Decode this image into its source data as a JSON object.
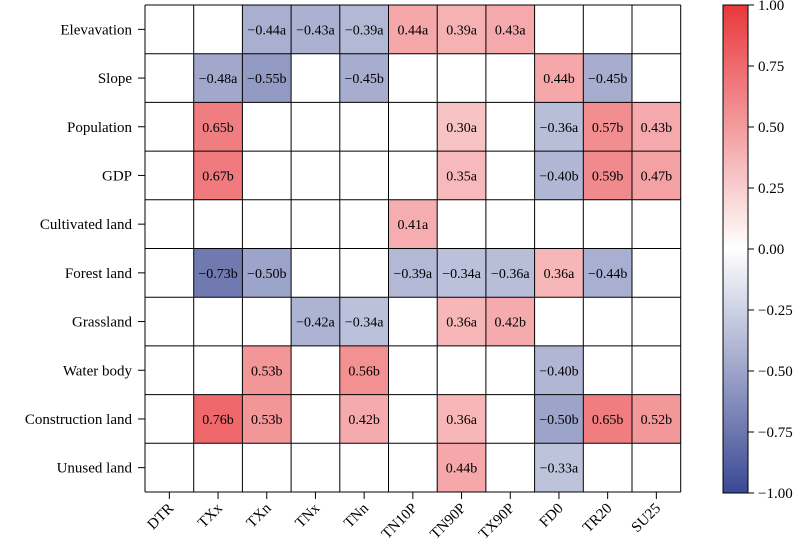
{
  "chart_data": {
    "type": "heatmap",
    "rows": [
      "Elevavation",
      "Slope",
      "Population",
      "GDP",
      "Cultivated land",
      "Forest land",
      "Grassland",
      "Water body",
      "Construction land",
      "Unused land"
    ],
    "columns": [
      "DTR",
      "TXx",
      "TXn",
      "TNx",
      "TNn",
      "TN10P",
      "TN90P",
      "TX90P",
      "FD0",
      "TR20",
      "SU25"
    ],
    "values": [
      [
        null,
        null,
        -0.44,
        -0.43,
        -0.39,
        0.44,
        0.39,
        0.43,
        null,
        null,
        null
      ],
      [
        null,
        -0.48,
        -0.55,
        null,
        -0.45,
        null,
        null,
        null,
        0.44,
        -0.45,
        null
      ],
      [
        null,
        0.65,
        null,
        null,
        null,
        null,
        0.3,
        null,
        -0.36,
        0.57,
        0.43
      ],
      [
        null,
        0.67,
        null,
        null,
        null,
        null,
        0.35,
        null,
        -0.4,
        0.59,
        0.47
      ],
      [
        null,
        null,
        null,
        null,
        null,
        0.41,
        null,
        null,
        null,
        null,
        null
      ],
      [
        null,
        -0.73,
        -0.5,
        null,
        null,
        -0.39,
        -0.34,
        -0.36,
        0.36,
        -0.44,
        null
      ],
      [
        null,
        null,
        null,
        -0.42,
        -0.34,
        null,
        0.36,
        0.42,
        null,
        null,
        null
      ],
      [
        null,
        null,
        0.53,
        null,
        0.56,
        null,
        null,
        null,
        -0.4,
        null,
        null
      ],
      [
        null,
        0.76,
        0.53,
        null,
        0.42,
        null,
        0.36,
        null,
        -0.5,
        0.65,
        0.52
      ],
      [
        null,
        null,
        null,
        null,
        null,
        null,
        0.44,
        null,
        -0.33,
        null,
        null
      ]
    ],
    "labels": [
      [
        "",
        "",
        "−0.44a",
        "−0.43a",
        "−0.39a",
        "0.44a",
        "0.39a",
        "0.43a",
        "",
        "",
        ""
      ],
      [
        "",
        "−0.48a",
        "−0.55b",
        "",
        "−0.45b",
        "",
        "",
        "",
        "0.44b",
        "−0.45b",
        ""
      ],
      [
        "",
        "0.65b",
        "",
        "",
        "",
        "",
        "0.30a",
        "",
        "−0.36a",
        "0.57b",
        "0.43b"
      ],
      [
        "",
        "0.67b",
        "",
        "",
        "",
        "",
        "0.35a",
        "",
        "−0.40b",
        "0.59b",
        "0.47b"
      ],
      [
        "",
        "",
        "",
        "",
        "",
        "0.41a",
        "",
        "",
        "",
        "",
        ""
      ],
      [
        "",
        "−0.73b",
        "−0.50b",
        "",
        "",
        "−0.39a",
        "−0.34a",
        "−0.36a",
        "0.36a",
        "−0.44b",
        ""
      ],
      [
        "",
        "",
        "",
        "−0.42a",
        "−0.34a",
        "",
        "0.36a",
        "0.42b",
        "",
        "",
        ""
      ],
      [
        "",
        "",
        "0.53b",
        "",
        "0.56b",
        "",
        "",
        "",
        "−0.40b",
        "",
        ""
      ],
      [
        "",
        "0.76b",
        "0.53b",
        "",
        "0.42b",
        "",
        "0.36a",
        "",
        "−0.50b",
        "0.65b",
        "0.52b"
      ],
      [
        "",
        "",
        "",
        "",
        "",
        "",
        "0.44b",
        "",
        "−0.33a",
        "",
        ""
      ]
    ],
    "colorbar": {
      "range": [
        -1.0,
        1.0
      ],
      "ticks": [
        1.0,
        0.75,
        0.5,
        0.25,
        0.0,
        -0.25,
        -0.5,
        -0.75,
        -1.0
      ],
      "tick_labels": [
        "1.00",
        "0.75",
        "0.50",
        "0.25",
        "0.00",
        "−0.25",
        "−0.50",
        "−0.75",
        "−1.00"
      ],
      "colors": {
        "negative": "#3b4994",
        "zero": "#ffffff",
        "positive": "#e8383d"
      }
    }
  }
}
